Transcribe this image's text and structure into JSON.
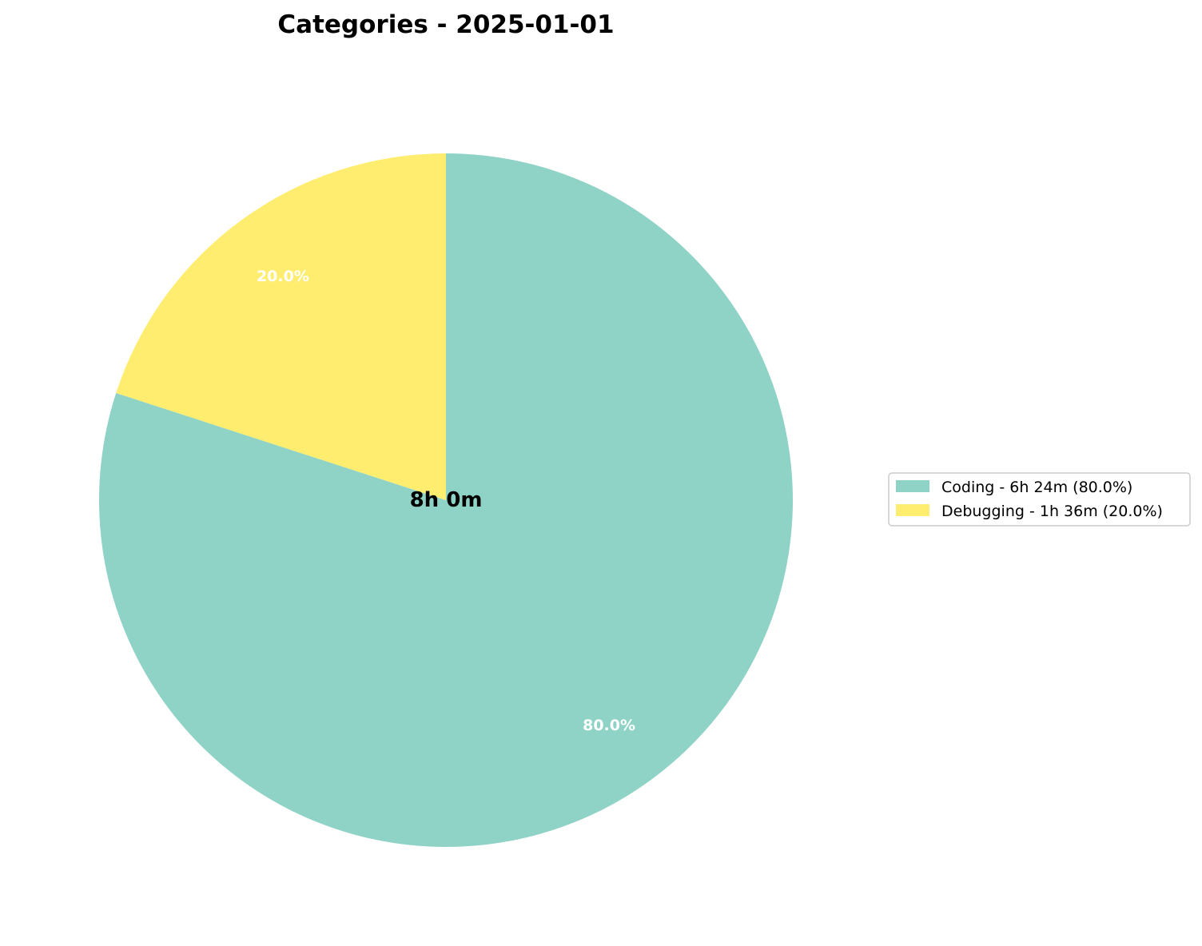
{
  "chart_data": {
    "type": "pie",
    "title": "Categories - 2025-01-01",
    "center_label": "8h 0m",
    "start_angle_deg": 90,
    "direction": "clockwise",
    "legend_position": "right",
    "slices": [
      {
        "name": "Coding",
        "value": 80.0,
        "pct_label": "80.0%",
        "legend_label": "Coding - 6h 24m (80.0%)",
        "color": "#8fd3c7"
      },
      {
        "name": "Debugging",
        "value": 20.0,
        "pct_label": "20.0%",
        "legend_label": "Debugging - 1h 36m (20.0%)",
        "color": "#ffed6f"
      }
    ]
  }
}
